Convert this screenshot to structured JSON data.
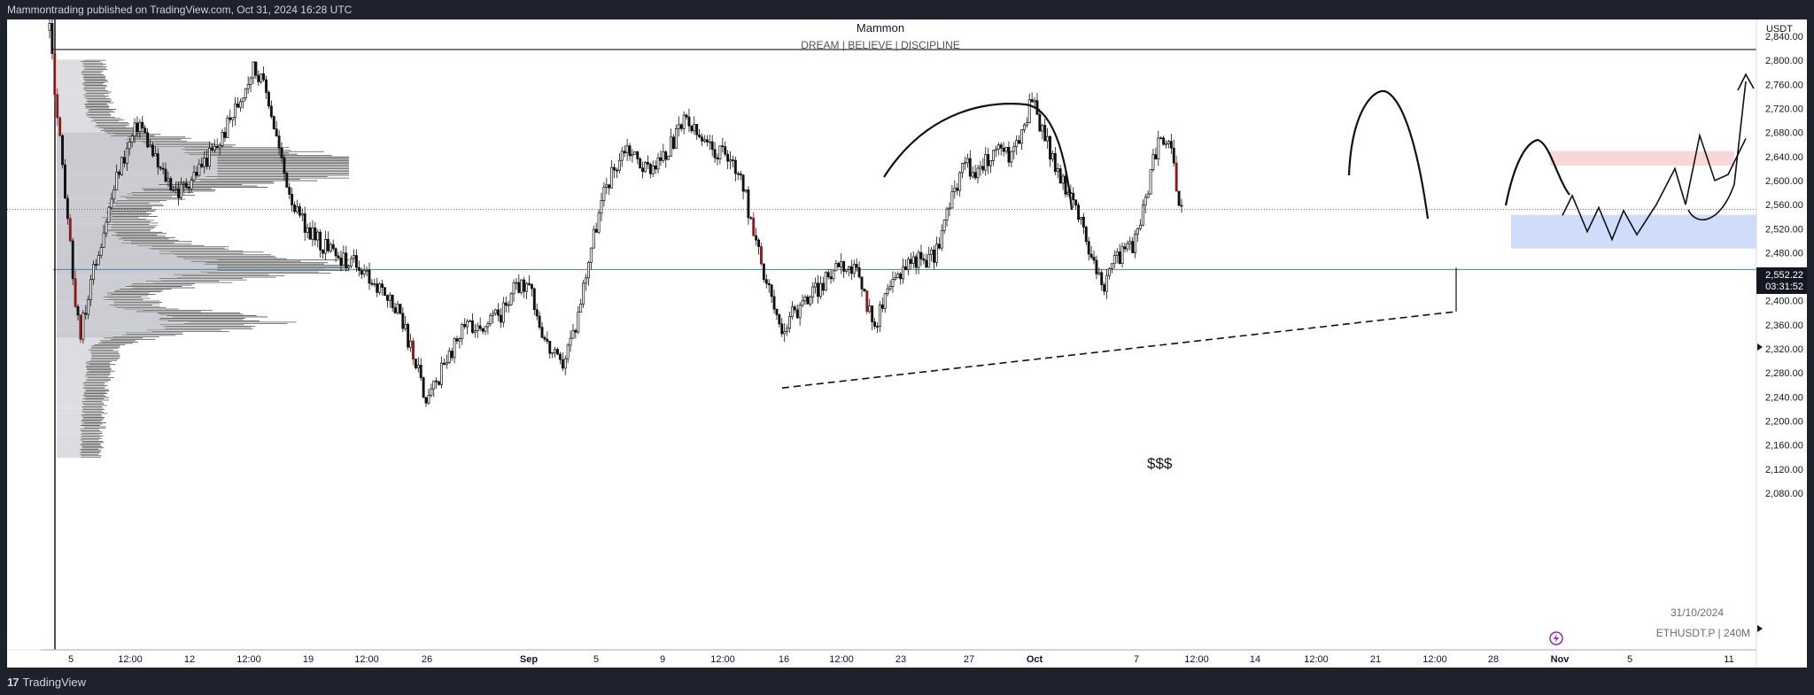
{
  "header": {
    "published": "Mammontrading published on TradingView.com, Oct 31, 2024 16:28 UTC"
  },
  "chart_title": {
    "title": "Mammon",
    "subtitle": "DREAM | BELIEVE | DISCIPLINE"
  },
  "footer": {
    "logo": "TradingView",
    "logo_mark": "17",
    "date": "31/10/2024",
    "symbol": "ETHUSDT.P | 240M"
  },
  "price_axis": {
    "currency": "USDT",
    "current_price": "2,552.22",
    "countdown": "03:31:52"
  },
  "annotations": {
    "liquidity": "$$$"
  },
  "colors": {
    "background": "#ffffff",
    "candles": "#111111",
    "bear_highlight": "#8b1a1a",
    "bull_highlight": "#2962ff",
    "supply_zone": "#f8d7db",
    "demand_zone": "#cfdcfa",
    "support_line": "#5b8fb0",
    "volume_profile": "#c9cbd0",
    "volume_profile_dark": "#555555",
    "chrome": "#1e222d"
  },
  "chart_data": {
    "type": "candlestick",
    "symbol": "ETHUSDT.P",
    "timeframe": "240M",
    "y_axis": {
      "min": 2080,
      "max": 2840,
      "step": 40,
      "tick_labels": [
        "2,840.00",
        "2,800.00",
        "2,760.00",
        "2,720.00",
        "2,680.00",
        "2,640.00",
        "2,600.00",
        "2,560.00",
        "2,520.00",
        "2,480.00",
        "2,440.00",
        "2,400.00",
        "2,360.00",
        "2,320.00",
        "2,280.00",
        "2,240.00",
        "2,200.00",
        "2,160.00",
        "2,120.00",
        "2,080.00"
      ]
    },
    "x_axis": {
      "tick_labels": [
        "5",
        "12:00",
        "12",
        "12:00",
        "19",
        "12:00",
        "26",
        "Sep",
        "5",
        "9",
        "12:00",
        "16",
        "12:00",
        "23",
        "27",
        "Oct",
        "7",
        "12:00",
        "14",
        "12:00",
        "21",
        "12:00",
        "28",
        "Nov",
        "5",
        "11"
      ],
      "bold_labels": [
        "Sep",
        "Oct",
        "Nov"
      ]
    },
    "price_path": [
      [
        0,
        2850
      ],
      [
        3,
        2580
      ],
      [
        6,
        2340
      ],
      [
        10,
        2490
      ],
      [
        14,
        2620
      ],
      [
        18,
        2700
      ],
      [
        22,
        2620
      ],
      [
        26,
        2580
      ],
      [
        30,
        2620
      ],
      [
        34,
        2660
      ],
      [
        38,
        2730
      ],
      [
        41,
        2790
      ],
      [
        44,
        2740
      ],
      [
        47,
        2620
      ],
      [
        50,
        2540
      ],
      [
        54,
        2500
      ],
      [
        58,
        2470
      ],
      [
        62,
        2460
      ],
      [
        66,
        2420
      ],
      [
        70,
        2390
      ],
      [
        74,
        2290
      ],
      [
        76,
        2230
      ],
      [
        80,
        2300
      ],
      [
        84,
        2360
      ],
      [
        88,
        2360
      ],
      [
        91,
        2380
      ],
      [
        94,
        2430
      ],
      [
        97,
        2410
      ],
      [
        100,
        2330
      ],
      [
        103,
        2290
      ],
      [
        106,
        2360
      ],
      [
        109,
        2490
      ],
      [
        112,
        2590
      ],
      [
        116,
        2660
      ],
      [
        120,
        2620
      ],
      [
        124,
        2640
      ],
      [
        128,
        2700
      ],
      [
        132,
        2660
      ],
      [
        136,
        2640
      ],
      [
        139,
        2620
      ],
      [
        142,
        2500
      ],
      [
        145,
        2420
      ],
      [
        147,
        2350
      ],
      [
        150,
        2380
      ],
      [
        153,
        2410
      ],
      [
        156,
        2430
      ],
      [
        159,
        2470
      ],
      [
        163,
        2440
      ],
      [
        166,
        2360
      ],
      [
        169,
        2410
      ],
      [
        172,
        2460
      ],
      [
        175,
        2470
      ],
      [
        178,
        2470
      ],
      [
        181,
        2550
      ],
      [
        184,
        2630
      ],
      [
        187,
        2610
      ],
      [
        190,
        2650
      ],
      [
        193,
        2640
      ],
      [
        196,
        2680
      ],
      [
        198,
        2740
      ],
      [
        200,
        2680
      ],
      [
        203,
        2620
      ],
      [
        206,
        2560
      ],
      [
        209,
        2500
      ],
      [
        212,
        2420
      ],
      [
        214,
        2460
      ],
      [
        216,
        2480
      ],
      [
        219,
        2500
      ],
      [
        222,
        2620
      ],
      [
        224,
        2680
      ],
      [
        226,
        2640
      ],
      [
        228,
        2550
      ]
    ],
    "volume_profile": {
      "point_of_control": 2625,
      "value_area": [
        2340,
        2680
      ],
      "range": [
        2140,
        2800
      ]
    },
    "horizontal_lines": [
      {
        "name": "range-high",
        "price": 2818
      },
      {
        "name": "support",
        "price": 2452
      },
      {
        "name": "current-price",
        "price": 2552.22
      }
    ],
    "zones": [
      {
        "name": "supply",
        "top": 2649,
        "bottom": 2625
      },
      {
        "name": "demand",
        "top": 2543,
        "bottom": 2487
      }
    ],
    "trendline": {
      "style": "dashed",
      "from": [
        2,
        2255
      ],
      "to": [
        4,
        2382
      ]
    },
    "projected_path": [
      2542,
      2575,
      2515,
      2555,
      2502,
      2550,
      2510,
      2560,
      2620,
      2560,
      2675,
      2600,
      2610,
      2670
    ]
  }
}
